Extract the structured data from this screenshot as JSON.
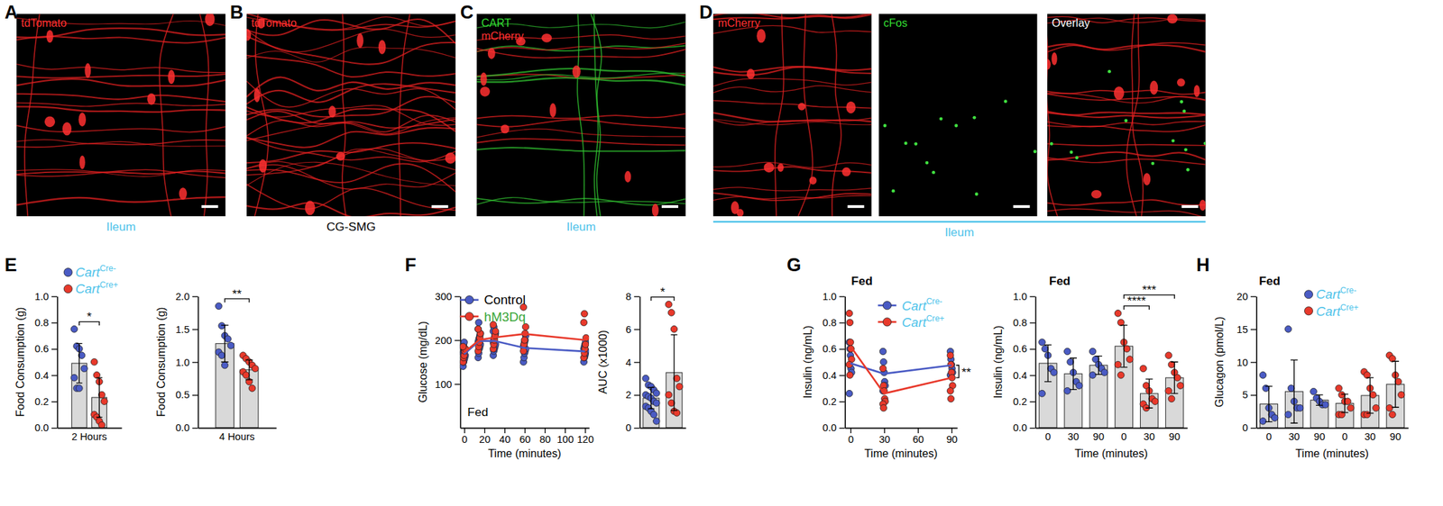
{
  "panels": [
    "A",
    "B",
    "C",
    "D"
  ],
  "images": [
    {
      "subpanels": [
        {
          "labels": [
            {
              "text": "tdTomato",
              "color": "#ff3030"
            }
          ]
        }
      ],
      "caption": {
        "text": "Ileum",
        "color": "#4fc3ea"
      }
    },
    {
      "subpanels": [
        {
          "labels": [
            {
              "text": "tdTomato",
              "color": "#ff3030"
            }
          ]
        }
      ],
      "caption": {
        "text": "CG-SMG",
        "color": "#000000"
      }
    },
    {
      "subpanels": [
        {
          "labels": [
            {
              "text": "CART",
              "color": "#33dd33"
            },
            {
              "text": "mCherry",
              "color": "#ff3030"
            }
          ]
        }
      ],
      "caption": {
        "text": "Ileum",
        "color": "#4fc3ea"
      }
    },
    {
      "subpanels": [
        {
          "labels": [
            {
              "text": "mCherry",
              "color": "#ff3030"
            }
          ]
        },
        {
          "labels": [
            {
              "text": "cFos",
              "color": "#33dd33"
            }
          ]
        },
        {
          "labels": [
            {
              "text": "Overlay",
              "color": "#ffffff"
            }
          ]
        }
      ],
      "caption": {
        "text": "Ileum",
        "color": "#4fc3ea"
      }
    }
  ],
  "chart_data": [
    {
      "panel": "E",
      "type": "bar",
      "categories": [
        "2 Hours"
      ],
      "ylabel": "Food Consumption (g)",
      "ylim": [
        0,
        1
      ],
      "yticks": [
        {
          "value": 0,
          "label": "0.0"
        },
        0.2,
        0.4,
        0.6,
        0.8,
        {
          "value": 1,
          "label": "1.0"
        }
      ],
      "legend": "top left",
      "series": [
        {
          "name": "CartCre-",
          "color": "#4a5bc4",
          "values": [
            0.49
          ],
          "errors": [
            0.15
          ],
          "points": [
            [
              0.75,
              0.62,
              0.6,
              0.55,
              0.45,
              0.38,
              0.3,
              0.3
            ]
          ]
        },
        {
          "name": "CartCre+",
          "color": "#e8392b",
          "values": [
            0.23
          ],
          "errors": [
            0.15
          ],
          "points": [
            [
              0.5,
              0.4,
              0.35,
              0.25,
              0.2,
              0.1,
              0.08,
              0.05,
              0.02
            ]
          ]
        }
      ],
      "annotations": [
        {
          "text": "*",
          "between": [
            0,
            1
          ]
        }
      ]
    },
    {
      "type": "bar",
      "categories": [
        "4 Hours"
      ],
      "ylabel": "Food Consumption (g)",
      "ylim": [
        0,
        2
      ],
      "yticks": [
        {
          "value": 0,
          "label": "0.0"
        },
        0.5,
        {
          "value": 1,
          "label": "1.0"
        },
        1.5,
        {
          "value": 2,
          "label": "2.0"
        }
      ],
      "series": [
        {
          "color": "#4a5bc4",
          "values": [
            1.28
          ],
          "errors": [
            0.28
          ],
          "points": [
            [
              1.85,
              1.55,
              1.4,
              1.35,
              1.25,
              1.15,
              1.1,
              0.95
            ]
          ]
        },
        {
          "color": "#e8392b",
          "values": [
            0.88
          ],
          "errors": [
            0.15
          ],
          "points": [
            [
              1.1,
              1.05,
              1.0,
              0.95,
              0.9,
              0.85,
              0.8,
              0.7,
              0.6
            ]
          ]
        }
      ],
      "annotations": [
        {
          "text": "**",
          "between": [
            0,
            1
          ]
        }
      ]
    },
    {
      "panel": "F",
      "type": "line",
      "title": "Fed",
      "x": [
        0,
        15,
        30,
        60,
        120
      ],
      "xlim": [
        -4,
        124
      ],
      "xticks": [
        0,
        20,
        40,
        60,
        80,
        100,
        120
      ],
      "xlabel": "Time (minutes)",
      "ylabel": "Glucose (mg/dL)",
      "ylim": [
        0,
        300
      ],
      "yticks": [
        100,
        200,
        300
      ],
      "legend": "top left",
      "marker": "circle",
      "series": [
        {
          "name": "Control",
          "color": "#4a5bc4",
          "values": [
            168,
            198,
            198,
            182,
            174
          ],
          "points": [
            [
              140,
              150,
              155,
              160,
              165,
              170,
              172,
              175,
              178,
              180,
              185,
              190,
              195
            ],
            [
              160,
              170,
              180,
              185,
              190,
              195,
              200,
              205,
              210,
              215,
              225,
              240
            ],
            [
              165,
              175,
              180,
              185,
              190,
              195,
              200,
              205,
              210,
              215,
              220,
              230
            ],
            [
              150,
              160,
              170,
              175,
              180,
              185,
              190,
              195,
              200,
              210
            ],
            [
              150,
              160,
              165,
              170,
              175,
              180,
              185,
              190,
              195
            ]
          ]
        },
        {
          "name": "hM3Dq",
          "color": "#e8392b",
          "values": [
            172,
            200,
            206,
            214,
            200
          ],
          "points": [
            [
              150,
              160,
              165,
              175,
              180,
              185
            ],
            [
              175,
              185,
              195,
              205,
              215,
              225
            ],
            [
              180,
              190,
              200,
              210,
              220,
              235
            ],
            [
              175,
              190,
              200,
              215,
              230,
              275
            ],
            [
              160,
              170,
              180,
              190,
              205,
              240,
              260
            ]
          ]
        }
      ]
    },
    {
      "type": "bar",
      "categories": [
        null,
        null
      ],
      "ylabel": "AUC (x1000)",
      "ylim": [
        0,
        8
      ],
      "yticks": [
        0,
        2,
        4,
        6,
        8
      ],
      "series": [
        {
          "color": "#4a5bc4",
          "values": [
            1.8,
            null
          ],
          "errors": [
            0.65,
            null
          ],
          "points": [
            [
              3.0,
              2.6,
              2.5,
              2.3,
              2.1,
              2.0,
              1.9,
              1.8,
              1.6,
              1.5,
              1.3,
              1.2,
              1.0,
              0.8,
              0.4
            ],
            []
          ]
        },
        {
          "color": "#e8392b",
          "values": [
            null,
            3.35
          ],
          "errors": [
            null,
            2.3
          ],
          "points": [
            [],
            [
              7.5,
              7.0,
              6.0,
              3.0,
              2.5,
              2.0,
              1.5,
              1.0,
              0.9
            ]
          ]
        }
      ],
      "annotations": [
        {
          "text": "*",
          "between": [
            0,
            1
          ]
        }
      ]
    },
    {
      "panel": "G",
      "type": "line",
      "title": "Fed",
      "x": [
        0,
        30,
        90
      ],
      "xlim": [
        -5,
        95
      ],
      "xticks": [
        0,
        30,
        60,
        90
      ],
      "xlabel": "Time (minutes)",
      "ylabel": "Insulin (ng/mL)",
      "ylim": [
        0,
        1
      ],
      "yticks": [
        {
          "value": 0,
          "label": "0.0"
        },
        0.2,
        0.4,
        0.6,
        0.8,
        {
          "value": 1,
          "label": "1.0"
        }
      ],
      "legend": "top right",
      "marker": "circle",
      "series": [
        {
          "name": "CartCre-",
          "color": "#4a5bc4",
          "values": [
            0.49,
            0.41,
            0.475
          ],
          "points": [
            [
              0.65,
              0.6,
              0.55,
              0.45,
              0.42,
              0.26
            ],
            [
              0.58,
              0.5,
              0.42,
              0.35,
              0.32,
              0.28
            ],
            [
              0.58,
              0.52,
              0.48,
              0.45,
              0.42,
              0.4
            ]
          ]
        },
        {
          "name": "CartCre+",
          "color": "#e8392b",
          "values": [
            0.62,
            0.26,
            0.38
          ],
          "points": [
            [
              0.87,
              0.8,
              0.65,
              0.6,
              0.52,
              0.48,
              0.4
            ],
            [
              0.45,
              0.32,
              0.28,
              0.22,
              0.2,
              0.18,
              0.15
            ],
            [
              0.55,
              0.48,
              0.42,
              0.38,
              0.32,
              0.28,
              0.22
            ]
          ]
        }
      ],
      "annotations": [
        {
          "text": "**",
          "between": [
            0,
            1
          ]
        }
      ]
    },
    {
      "type": "bar",
      "title": "Fed",
      "categories": [
        "0",
        "30",
        "90",
        "0",
        "30",
        "90"
      ],
      "xlabel": "Time (minutes)",
      "ylabel": "Insulin (ng/mL)",
      "ylim": [
        0,
        1
      ],
      "yticks": [
        {
          "value": 0,
          "label": "0.0"
        },
        0.2,
        0.4,
        0.6,
        0.8,
        {
          "value": 1,
          "label": "1.0"
        }
      ],
      "series": [
        {
          "color": "#4a5bc4",
          "values": [
            0.49,
            0.41,
            0.475,
            null,
            null,
            null
          ],
          "errors": [
            0.14,
            0.12,
            0.07,
            null,
            null,
            null
          ],
          "points": [
            [
              0.65,
              0.6,
              0.55,
              0.45,
              0.42,
              0.26
            ],
            [
              0.58,
              0.5,
              0.42,
              0.35,
              0.32,
              0.28
            ],
            [
              0.58,
              0.52,
              0.48,
              0.45,
              0.42,
              0.4
            ],
            [],
            [],
            []
          ]
        },
        {
          "color": "#e8392b",
          "values": [
            null,
            null,
            null,
            0.62,
            0.26,
            0.38
          ],
          "errors": [
            null,
            null,
            null,
            0.16,
            0.11,
            0.12
          ],
          "points": [
            [],
            [],
            [],
            [
              0.87,
              0.8,
              0.65,
              0.6,
              0.52,
              0.48,
              0.4
            ],
            [
              0.45,
              0.32,
              0.28,
              0.22,
              0.2,
              0.18,
              0.15
            ],
            [
              0.55,
              0.48,
              0.42,
              0.38,
              0.32,
              0.28,
              0.22
            ]
          ]
        }
      ],
      "annotations": [
        {
          "text": "****",
          "between": [
            3,
            4
          ]
        },
        {
          "text": "***",
          "between": [
            3,
            5
          ]
        }
      ]
    },
    {
      "panel": "H",
      "type": "bar",
      "title": "Fed",
      "categories": [
        "0",
        "30",
        "90",
        "0",
        "30",
        "90"
      ],
      "xlabel": "Time (minutes)",
      "ylabel": "Glucagon (pmol/L)",
      "ylim": [
        0,
        20
      ],
      "yticks": [
        0,
        5,
        10,
        15,
        20
      ],
      "legend": "top",
      "series": [
        {
          "name": "CartCre-",
          "color": "#4a5bc4",
          "values": [
            3.6,
            5.5,
            4.2,
            null,
            null,
            null
          ],
          "errors": [
            2.7,
            4.8,
            0.8,
            null,
            null,
            null
          ],
          "points": [
            [
              8,
              6,
              3,
              2,
              1.5,
              1
            ],
            [
              15,
              6,
              4,
              3,
              3,
              2
            ],
            [
              5.5,
              4.5,
              4,
              3.5,
              3.5
            ],
            [],
            [],
            []
          ]
        },
        {
          "name": "CartCre+",
          "color": "#e8392b",
          "values": [
            null,
            null,
            null,
            3.7,
            4.9,
            6.6
          ],
          "errors": [
            null,
            null,
            null,
            1.4,
            2.7,
            3.5
          ],
          "points": [
            [],
            [],
            [],
            [
              6,
              5,
              4,
              4,
              3,
              2,
              2
            ],
            [
              8.5,
              8,
              6,
              5,
              3,
              2,
              2
            ],
            [
              11,
              10.5,
              8,
              7,
              5,
              3,
              2
            ]
          ]
        }
      ]
    }
  ]
}
